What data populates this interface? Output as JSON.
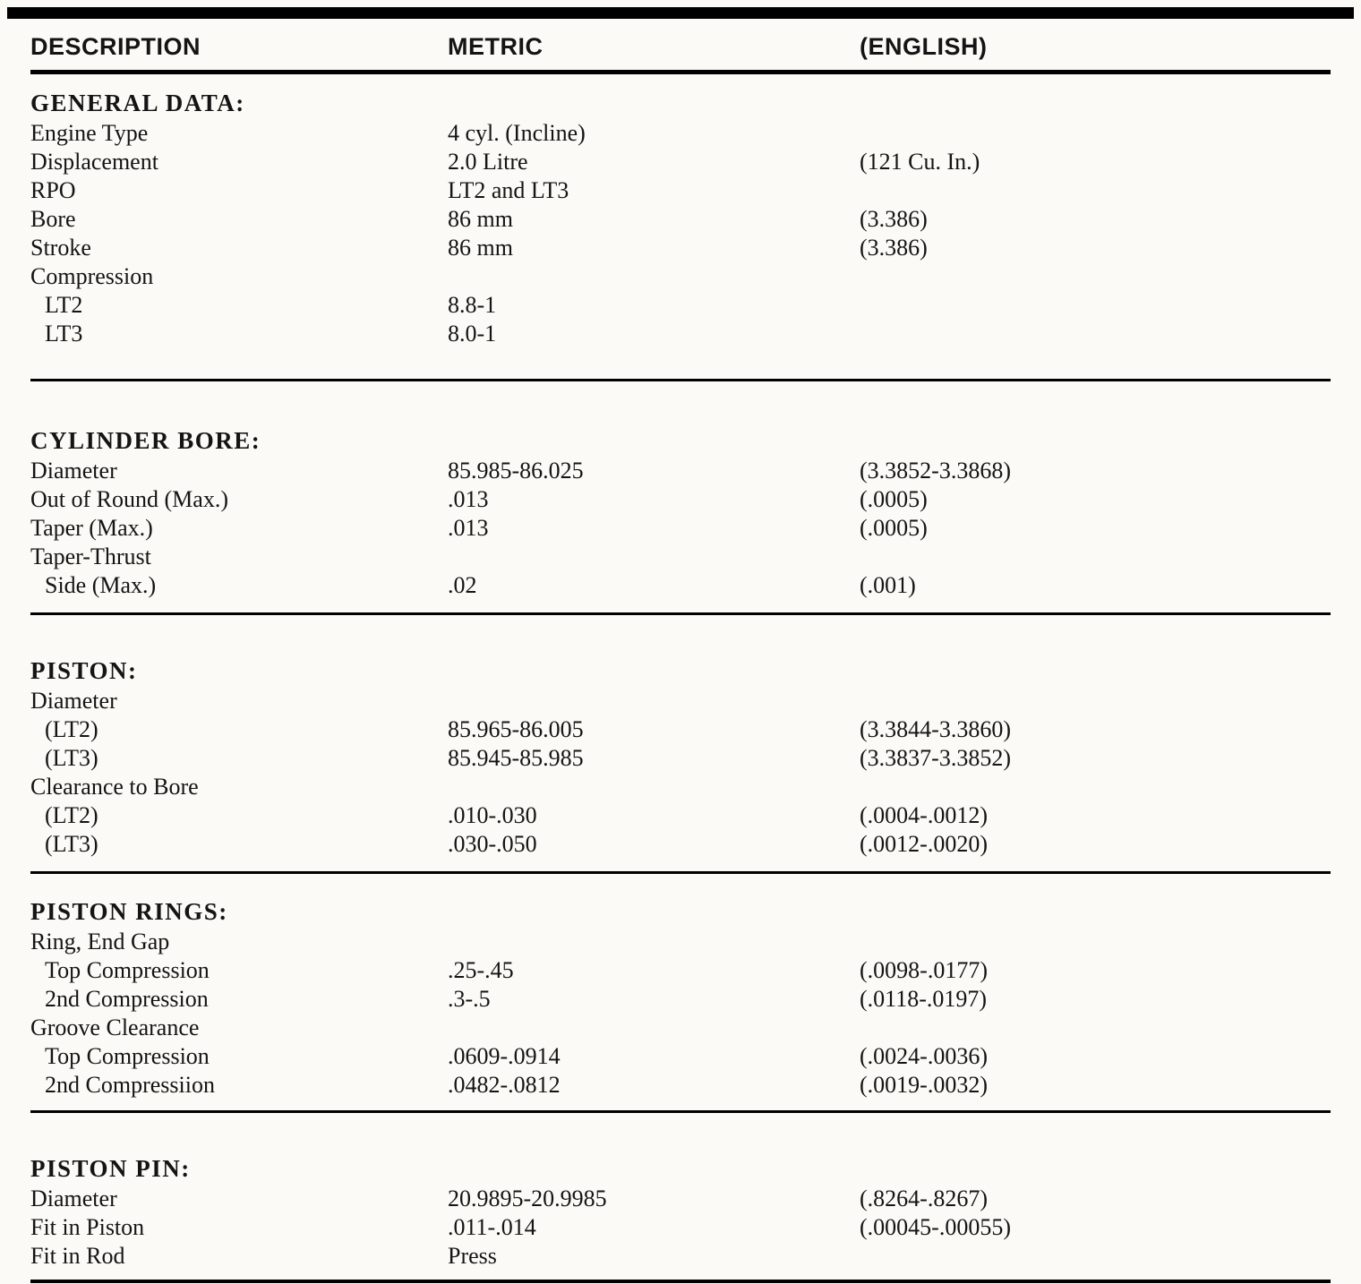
{
  "page": {
    "columns": {
      "description": "DESCRIPTION",
      "metric": "METRIC",
      "english": "(ENGLISH)"
    },
    "sections": [
      {
        "title": "GENERAL DATA:",
        "rows": [
          {
            "desc": "Engine Type",
            "metric": "4 cyl. (Incline)",
            "english": "",
            "indent": false
          },
          {
            "desc": "Displacement",
            "metric": "2.0 Litre",
            "english": "(121 Cu. In.)",
            "indent": false
          },
          {
            "desc": "RPO",
            "metric": "LT2 and LT3",
            "english": "",
            "indent": false
          },
          {
            "desc": "Bore",
            "metric": "86 mm",
            "english": "(3.386)",
            "indent": false
          },
          {
            "desc": "Stroke",
            "metric": "86 mm",
            "english": "(3.386)",
            "indent": false
          },
          {
            "desc": "Compression",
            "metric": "",
            "english": "",
            "indent": false
          },
          {
            "desc": "LT2",
            "metric": "8.8-1",
            "english": "",
            "indent": true
          },
          {
            "desc": "LT3",
            "metric": "8.0-1",
            "english": "",
            "indent": true
          }
        ]
      },
      {
        "title": "CYLINDER BORE:",
        "rows": [
          {
            "desc": "Diameter",
            "metric": "85.985-86.025",
            "english": "(3.3852-3.3868)",
            "indent": false
          },
          {
            "desc": "Out of Round (Max.)",
            "metric": ".013",
            "english": "(.0005)",
            "indent": false
          },
          {
            "desc": "Taper (Max.)",
            "metric": ".013",
            "english": "(.0005)",
            "indent": false
          },
          {
            "desc": "Taper-Thrust",
            "metric": "",
            "english": "",
            "indent": false
          },
          {
            "desc": "Side (Max.)",
            "metric": ".02",
            "english": "(.001)",
            "indent": true
          }
        ]
      },
      {
        "title": "PISTON:",
        "rows": [
          {
            "desc": "Diameter",
            "metric": "",
            "english": "",
            "indent": false
          },
          {
            "desc": "(LT2)",
            "metric": "85.965-86.005",
            "english": "(3.3844-3.3860)",
            "indent": true
          },
          {
            "desc": "(LT3)",
            "metric": "85.945-85.985",
            "english": "(3.3837-3.3852)",
            "indent": true
          },
          {
            "desc": "Clearance to Bore",
            "metric": "",
            "english": "",
            "indent": false
          },
          {
            "desc": "(LT2)",
            "metric": ".010-.030",
            "english": "(.0004-.0012)",
            "indent": true
          },
          {
            "desc": "(LT3)",
            "metric": ".030-.050",
            "english": "(.0012-.0020)",
            "indent": true
          }
        ]
      },
      {
        "title": "PISTON RINGS:",
        "rows": [
          {
            "desc": "Ring, End Gap",
            "metric": "",
            "english": "",
            "indent": false
          },
          {
            "desc": "Top Compression",
            "metric": ".25-.45",
            "english": "(.0098-.0177)",
            "indent": true
          },
          {
            "desc": "2nd Compression",
            "metric": ".3-.5",
            "english": "(.0118-.0197)",
            "indent": true
          },
          {
            "desc": "Groove Clearance",
            "metric": "",
            "english": "",
            "indent": false
          },
          {
            "desc": "Top Compression",
            "metric": ".0609-.0914",
            "english": "(.0024-.0036)",
            "indent": true
          },
          {
            "desc": "2nd Compressiion",
            "metric": ".0482-.0812",
            "english": "(.0019-.0032)",
            "indent": true
          }
        ]
      },
      {
        "title": "PISTON PIN:",
        "rows": [
          {
            "desc": "Diameter",
            "metric": "20.9895-20.9985",
            "english": "(.8264-.8267)",
            "indent": false
          },
          {
            "desc": "Fit in Piston",
            "metric": ".011-.014",
            "english": "(.00045-.00055)",
            "indent": false
          },
          {
            "desc": "Fit in Rod",
            "metric": "Press",
            "english": "",
            "indent": false
          }
        ]
      }
    ]
  }
}
